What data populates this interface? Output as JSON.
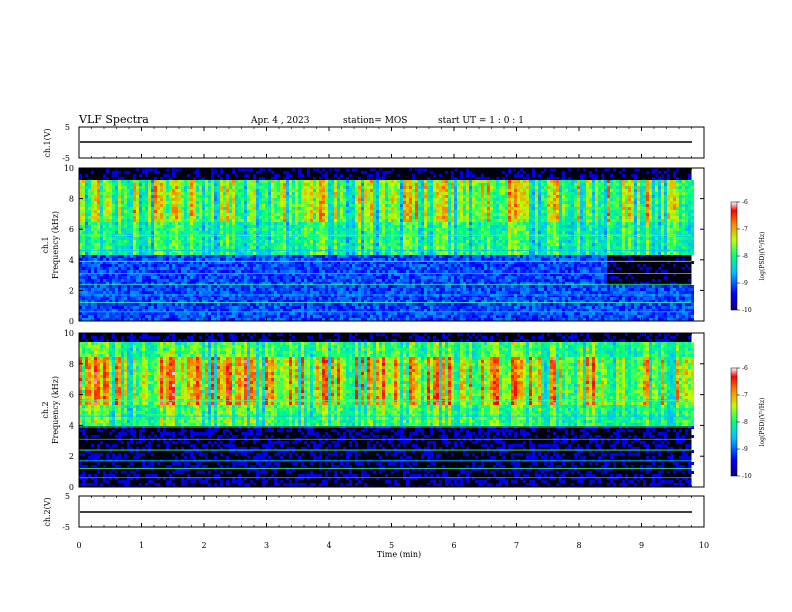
{
  "header": {
    "title": "VLF Spectra",
    "date": "Apr. 4 , 2023",
    "station": "station= MOS",
    "start": "start UT = 1 : 0 : 1"
  },
  "chart_data": [
    {
      "type": "line",
      "panel": "ch.1 waveform",
      "ylabel": "ch.1(V)",
      "ylim": [
        -5,
        5
      ],
      "yticks": [
        "5",
        "-5"
      ],
      "series": [
        {
          "values_note": "flat trace near 0 V across 0–9.8 min",
          "y": 0
        }
      ]
    },
    {
      "type": "heatmap",
      "panel": "ch.1 spectrogram",
      "ylabel_top": "ch.1",
      "ylabel": "Frequency (kHz)",
      "ylim": [
        0,
        10
      ],
      "yticks": [
        "0",
        "2",
        "4",
        "6",
        "8",
        "10"
      ],
      "x_end": 9.8,
      "colorbar": {
        "label": "log(PSD)(V²/Hz)",
        "range": [
          -10,
          -6
        ],
        "ticks": [
          "-6",
          "-7",
          "-8",
          "-9",
          "-10"
        ]
      }
    },
    {
      "type": "heatmap",
      "panel": "ch.2 spectrogram",
      "ylabel_top": "ch.2",
      "ylabel": "Frequency (kHz)",
      "ylim": [
        0,
        10
      ],
      "yticks": [
        "0",
        "2",
        "4",
        "6",
        "8",
        "10"
      ],
      "x_end": 9.8,
      "colorbar": {
        "label": "log(PSD)(V²/Hz)",
        "range": [
          -10,
          -6
        ],
        "ticks": [
          "-6",
          "-7",
          "-8",
          "-9",
          "-10"
        ]
      }
    },
    {
      "type": "line",
      "panel": "ch.2 waveform",
      "ylabel": "ch.2(V)",
      "ylim": [
        -5,
        5
      ],
      "yticks": [
        "5",
        "-5"
      ],
      "series": [
        {
          "values_note": "flat trace near 0 V across 0–9.8 min",
          "y": 0
        }
      ]
    }
  ],
  "xaxis": {
    "label": "Time (min)",
    "range": [
      0,
      10
    ],
    "ticks": [
      "0",
      "1",
      "2",
      "3",
      "4",
      "5",
      "6",
      "7",
      "8",
      "9",
      "10"
    ]
  }
}
